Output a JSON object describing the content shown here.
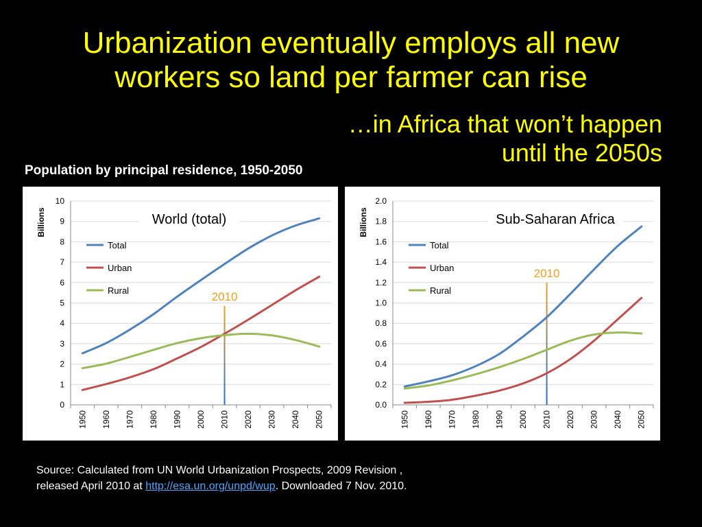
{
  "slide": {
    "title_line1": "Urbanization eventually employs all new",
    "title_line2": "workers so land per farmer can rise",
    "subtitle_line1": "…in Africa that won’t happen",
    "subtitle_line2": "until the 2050s",
    "section_label": "Population by principal residence, 1950-2050",
    "source_line1": "Source: Calculated  from UN World Urbanization Prospects, 2009 Revision ,",
    "source_prefix": "released April 2010 at ",
    "source_link": "http://esa.un.org/unpd/wup",
    "source_suffix": ".  Downloaded 7 Nov. 2010."
  },
  "chart_data": [
    {
      "type": "line",
      "title": "World (total)",
      "ylabel": "Billions",
      "x": [
        1950,
        1960,
        1970,
        1980,
        1990,
        2000,
        2010,
        2020,
        2030,
        2040,
        2050
      ],
      "x_tick_labels": [
        "1950",
        "1960",
        "1970",
        "1980",
        "1990",
        "2000",
        "2010",
        "2020",
        "2030",
        "2040",
        "2050"
      ],
      "ylim": [
        0,
        10
      ],
      "y_ticks": [
        0,
        1,
        2,
        3,
        4,
        5,
        6,
        7,
        8,
        9,
        10
      ],
      "y_tick_labels": [
        "0",
        "1",
        "2",
        "3",
        "4",
        "5",
        "6",
        "7",
        "8",
        "9",
        "10"
      ],
      "grid": true,
      "legend_position": "top-left",
      "series": [
        {
          "name": "Total",
          "color": "#4f81bd",
          "values": [
            2.53,
            3.03,
            3.69,
            4.45,
            5.31,
            6.12,
            6.91,
            7.67,
            8.31,
            8.8,
            9.15
          ]
        },
        {
          "name": "Urban",
          "color": "#c0504d",
          "values": [
            0.73,
            1.02,
            1.35,
            1.75,
            2.28,
            2.84,
            3.49,
            4.18,
            4.9,
            5.62,
            6.29
          ]
        },
        {
          "name": "Rural",
          "color": "#9bbb59",
          "values": [
            1.8,
            2.02,
            2.35,
            2.7,
            3.03,
            3.27,
            3.42,
            3.49,
            3.41,
            3.18,
            2.86
          ]
        }
      ],
      "annotation": {
        "label": "2010",
        "x": 2010,
        "y": 4.85,
        "color": "#f0a020"
      }
    },
    {
      "type": "line",
      "title": "Sub-Saharan Africa",
      "ylabel": "Billions",
      "x": [
        1950,
        1960,
        1970,
        1980,
        1990,
        2000,
        2010,
        2020,
        2030,
        2040,
        2050
      ],
      "x_tick_labels": [
        "1950",
        "1960",
        "1970",
        "1980",
        "1990",
        "2000",
        "2010",
        "2020",
        "2030",
        "2040",
        "2050"
      ],
      "ylim": [
        0,
        2.0
      ],
      "y_ticks": [
        0,
        0.2,
        0.4,
        0.6,
        0.8,
        1.0,
        1.2,
        1.4,
        1.6,
        1.8,
        2.0
      ],
      "y_tick_labels": [
        "0.0",
        "0.2",
        "0.4",
        "0.6",
        "0.8",
        "1.0",
        "1.2",
        "1.4",
        "1.6",
        "1.8",
        "2.0"
      ],
      "grid": true,
      "legend_position": "top-left",
      "series": [
        {
          "name": "Total",
          "color": "#4f81bd",
          "values": [
            0.18,
            0.23,
            0.29,
            0.38,
            0.5,
            0.67,
            0.86,
            1.09,
            1.33,
            1.56,
            1.75
          ]
        },
        {
          "name": "Urban",
          "color": "#c0504d",
          "values": [
            0.02,
            0.03,
            0.05,
            0.09,
            0.14,
            0.21,
            0.31,
            0.45,
            0.63,
            0.84,
            1.05
          ]
        },
        {
          "name": "Rural",
          "color": "#9bbb59",
          "values": [
            0.16,
            0.19,
            0.24,
            0.3,
            0.37,
            0.45,
            0.54,
            0.63,
            0.69,
            0.71,
            0.7
          ]
        }
      ],
      "annotation": {
        "label": "2010",
        "x": 2010,
        "y": 1.2,
        "color": "#f0a020"
      }
    }
  ]
}
